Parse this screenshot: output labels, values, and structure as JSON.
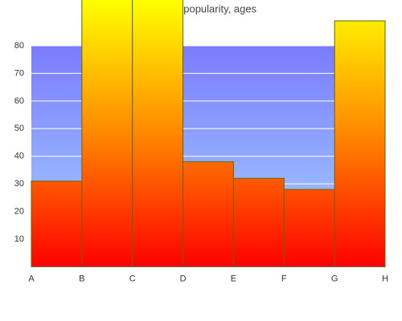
{
  "chart_data": {
    "type": "step",
    "title": "Doxepin popularity, ages",
    "categories": [
      "A",
      "B",
      "C",
      "D",
      "E",
      "F",
      "G",
      "H"
    ],
    "values": [
      31,
      100,
      100,
      38,
      32,
      28,
      89,
      null
    ],
    "ylim": [
      0,
      80
    ],
    "yticks": [
      10,
      20,
      30,
      40,
      50,
      60,
      70,
      80
    ],
    "grid": true,
    "color": "#ff0000"
  }
}
